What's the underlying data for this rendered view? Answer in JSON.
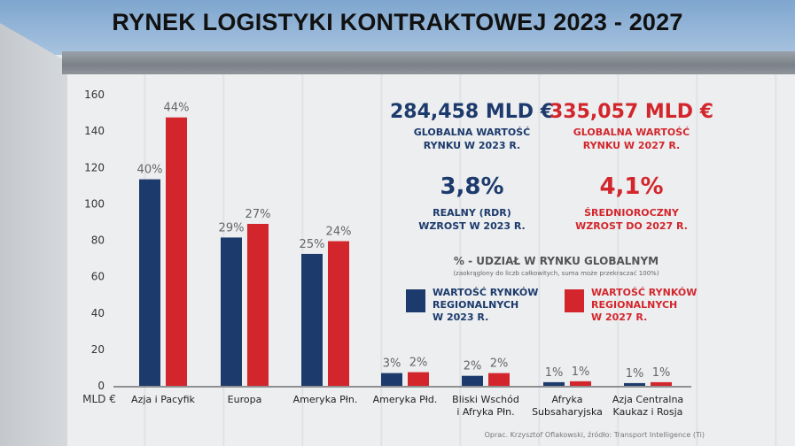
{
  "title": "RYNEK LOGISTYKI KONTRAKTOWEJ  2023 - 2027",
  "colors": {
    "series_2023": "#1c3a6b",
    "series_2027": "#d3262c"
  },
  "stats": {
    "global_2023_value": "284,458 MLD €",
    "global_2023_label_1": "GLOBALNA WARTOŚĆ",
    "global_2023_label_2": "RYNKU W 2023 R.",
    "global_2027_value": "335,057 MLD €",
    "global_2027_label_1": "GLOBALNA WARTOŚĆ",
    "global_2027_label_2": "RYNKU W 2027 R.",
    "growth_2023_value": "3,8%",
    "growth_2023_label_1": "REALNY (RDR)",
    "growth_2023_label_2": "WZROST W 2023 R.",
    "growth_2027_value": "4,1%",
    "growth_2027_label_1": "ŚREDNIOROCZNY",
    "growth_2027_label_2": "WZROST DO 2027 R."
  },
  "legend": {
    "title": "% - UDZIAŁ W RYNKU GLOBALNYM",
    "note": "(zaokrąglony do liczb całkowitych, suma może przekraczać 100%)",
    "item_2023_1": "WARTOŚĆ RYNKÓW",
    "item_2023_2": "REGIONALNYCH",
    "item_2023_3": "W 2023 R.",
    "item_2027_1": "WARTOŚĆ RYNKÓW",
    "item_2027_2": "REGIONALNYCH",
    "item_2027_3": "W 2027 R."
  },
  "source": "Oprac. Krzysztof Oflakowski, źródło: Transport Intelligence (Ti)",
  "chart_data": {
    "type": "bar",
    "ylabel": "MLD €",
    "ylim": [
      0,
      160
    ],
    "yticks": [
      0,
      20,
      40,
      60,
      80,
      100,
      120,
      140,
      160
    ],
    "grid": false,
    "categories": [
      [
        "Azja i Pacyfik"
      ],
      [
        "Europa"
      ],
      [
        "Ameryka Płn."
      ],
      [
        "Ameryka Płd."
      ],
      [
        "Bliski Wschód",
        "i Afryka Płn."
      ],
      [
        "Afryka",
        "Subsaharyjska"
      ],
      [
        "Azja Centralna",
        "Kaukaz i Rosja"
      ]
    ],
    "series": [
      {
        "name": "WARTOŚĆ RYNKÓW REGIONALNYCH W 2023 R.",
        "values": [
          113.5,
          81.5,
          72.5,
          7.0,
          5.5,
          2.0,
          1.5
        ],
        "labels": [
          "40%",
          "29%",
          "25%",
          "3%",
          "2%",
          "1%",
          "1%"
        ]
      },
      {
        "name": "WARTOŚĆ RYNKÓW REGIONALNYCH W 2027 R.",
        "values": [
          147.5,
          89.0,
          79.5,
          7.5,
          7.0,
          2.5,
          2.0
        ],
        "labels": [
          "44%",
          "27%",
          "24%",
          "2%",
          "2%",
          "1%",
          "1%"
        ]
      }
    ]
  }
}
